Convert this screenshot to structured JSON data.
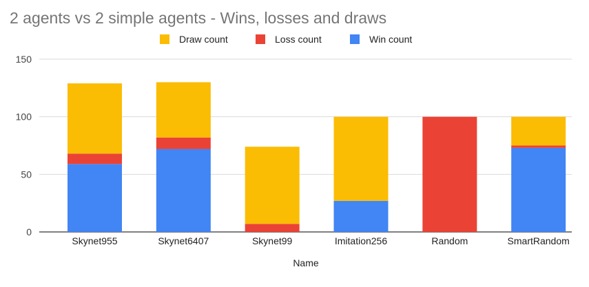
{
  "chart_data": {
    "type": "bar",
    "stacked": true,
    "title": "2 agents vs 2 simple agents - Wins, losses and draws",
    "xlabel": "Name",
    "ylabel": "",
    "ylim": [
      0,
      150
    ],
    "yticks": [
      0,
      50,
      100,
      150
    ],
    "grid": true,
    "legend_position": "top",
    "categories": [
      "Skynet955",
      "Skynet6407",
      "Skynet99",
      "Imitation256",
      "Random",
      "SmartRandom"
    ],
    "series": [
      {
        "name": "Win count",
        "color": "#4285f4",
        "values": [
          59,
          72,
          0,
          27,
          0,
          73
        ]
      },
      {
        "name": "Loss count",
        "color": "#ea4335",
        "values": [
          9,
          10,
          7,
          0,
          100,
          2
        ]
      },
      {
        "name": "Draw count",
        "color": "#fbbc04",
        "values": [
          61,
          48,
          67,
          73,
          0,
          25
        ]
      }
    ],
    "legend_order": [
      "Draw count",
      "Loss count",
      "Win count"
    ]
  }
}
